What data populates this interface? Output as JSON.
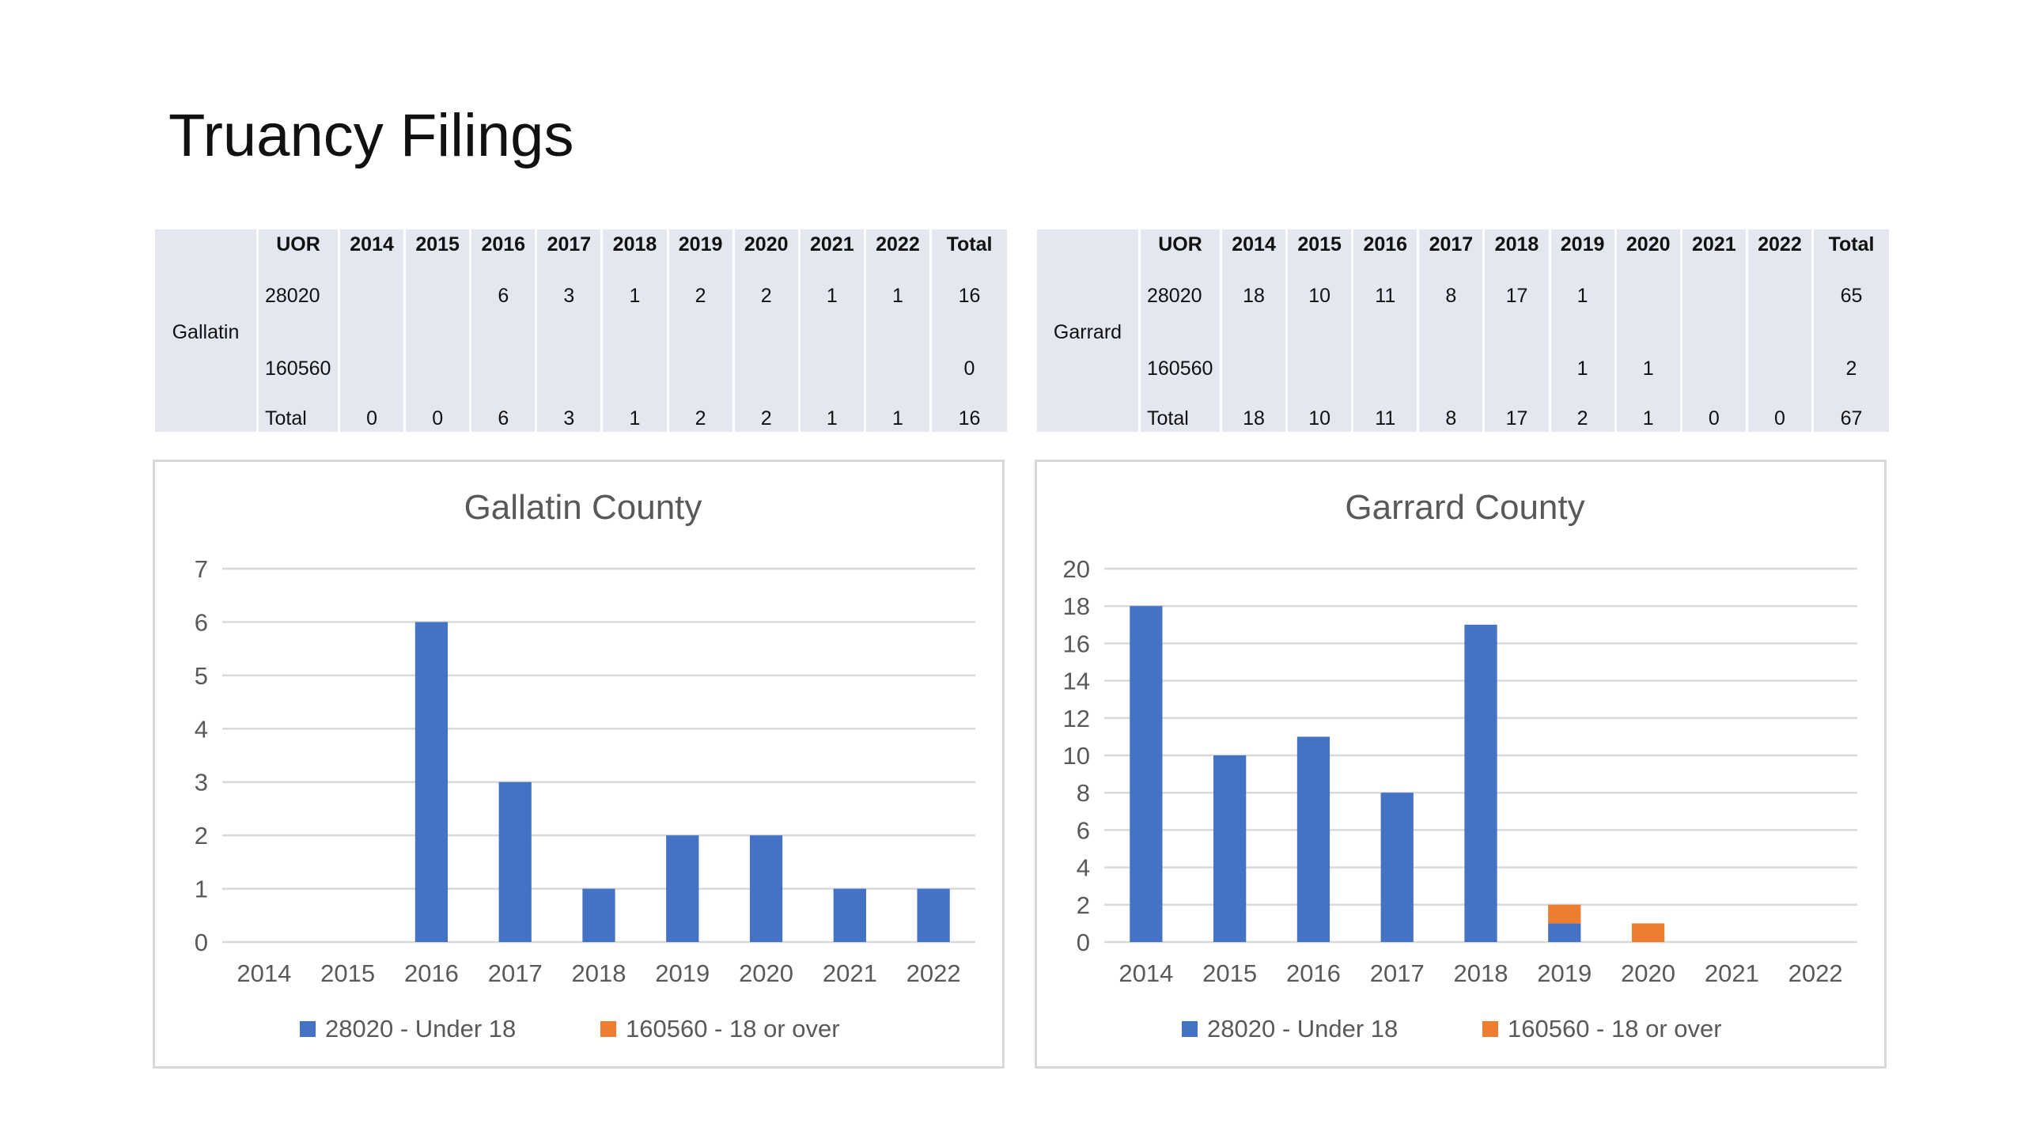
{
  "slide": {
    "title": "Truancy Filings"
  },
  "tables": [
    {
      "county": "Gallatin",
      "headers": [
        "UOR",
        "2014",
        "2015",
        "2016",
        "2017",
        "2018",
        "2019",
        "2020",
        "2021",
        "2022",
        "Total"
      ],
      "rows": [
        [
          "28020",
          "",
          "",
          "6",
          "3",
          "1",
          "2",
          "2",
          "1",
          "1",
          "16"
        ],
        [
          "160560",
          "",
          "",
          "",
          "",
          "",
          "",
          "",
          "",
          "",
          "0"
        ],
        [
          "Total",
          "0",
          "0",
          "6",
          "3",
          "1",
          "2",
          "2",
          "1",
          "1",
          "16"
        ]
      ]
    },
    {
      "county": "Garrard",
      "headers": [
        "UOR",
        "2014",
        "2015",
        "2016",
        "2017",
        "2018",
        "2019",
        "2020",
        "2021",
        "2022",
        "Total"
      ],
      "rows": [
        [
          "28020",
          "18",
          "10",
          "11",
          "8",
          "17",
          "1",
          "",
          "",
          "",
          "65"
        ],
        [
          "160560",
          "",
          "",
          "",
          "",
          "",
          "1",
          "1",
          "",
          "",
          "2"
        ],
        [
          "Total",
          "18",
          "10",
          "11",
          "8",
          "17",
          "2",
          "1",
          "0",
          "0",
          "67"
        ]
      ]
    }
  ],
  "chart_data": [
    {
      "type": "bar",
      "stacked": true,
      "title": "Gallatin County",
      "categories": [
        "2014",
        "2015",
        "2016",
        "2017",
        "2018",
        "2019",
        "2020",
        "2021",
        "2022"
      ],
      "series": [
        {
          "name": "28020 - Under 18",
          "color": "#4472c4",
          "values": [
            0,
            0,
            6,
            3,
            1,
            2,
            2,
            1,
            1
          ]
        },
        {
          "name": "160560 - 18 or over",
          "color": "#ed7d31",
          "values": [
            0,
            0,
            0,
            0,
            0,
            0,
            0,
            0,
            0
          ]
        }
      ],
      "ylim": [
        0,
        7
      ],
      "yticks": [
        0,
        1,
        2,
        3,
        4,
        5,
        6,
        7
      ],
      "grid": true,
      "legend": "bottom"
    },
    {
      "type": "bar",
      "stacked": true,
      "title": "Garrard County",
      "categories": [
        "2014",
        "2015",
        "2016",
        "2017",
        "2018",
        "2019",
        "2020",
        "2021",
        "2022"
      ],
      "series": [
        {
          "name": "28020 - Under 18",
          "color": "#4472c4",
          "values": [
            18,
            10,
            11,
            8,
            17,
            1,
            0,
            0,
            0
          ]
        },
        {
          "name": "160560 - 18 or over",
          "color": "#ed7d31",
          "values": [
            0,
            0,
            0,
            0,
            0,
            1,
            1,
            0,
            0
          ]
        }
      ],
      "ylim": [
        0,
        20
      ],
      "yticks": [
        0,
        2,
        4,
        6,
        8,
        10,
        12,
        14,
        16,
        18,
        20
      ],
      "grid": true,
      "legend": "bottom"
    }
  ]
}
